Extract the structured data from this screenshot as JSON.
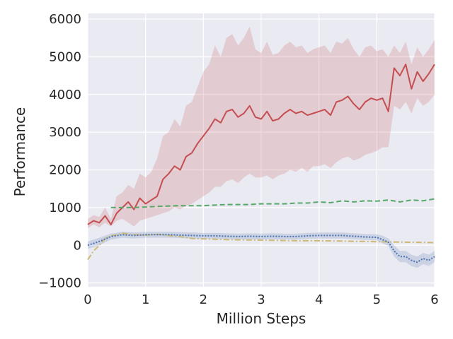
{
  "chart_data": {
    "type": "line",
    "title": "",
    "xlabel": "Million Steps",
    "ylabel": "Performance",
    "xlim": [
      0,
      6
    ],
    "ylim": [
      -1100,
      6150
    ],
    "xticks": [
      0,
      1,
      2,
      3,
      4,
      5,
      6
    ],
    "xtick_labels": [
      "0",
      "1",
      "2",
      "3",
      "4",
      "5",
      "6"
    ],
    "yticks": [
      -1000,
      0,
      1000,
      2000,
      3000,
      4000,
      5000,
      6000
    ],
    "ytick_labels": [
      "−1000",
      "0",
      "1000",
      "2000",
      "3000",
      "4000",
      "5000",
      "6000"
    ],
    "grid": true,
    "legend": "none",
    "colors": {
      "background": "#eaeaf2",
      "grid": "#ffffff"
    },
    "series": [
      {
        "color": "#c44e52",
        "linestyle": "solid",
        "x": [
          0,
          0.1,
          0.2,
          0.3,
          0.4,
          0.5,
          0.6,
          0.7,
          0.8,
          0.9,
          1.0,
          1.1,
          1.2,
          1.3,
          1.4,
          1.5,
          1.6,
          1.7,
          1.8,
          1.9,
          2.0,
          2.1,
          2.2,
          2.3,
          2.4,
          2.5,
          2.6,
          2.7,
          2.8,
          2.9,
          3.0,
          3.1,
          3.2,
          3.3,
          3.4,
          3.5,
          3.6,
          3.7,
          3.8,
          3.9,
          4.0,
          4.1,
          4.2,
          4.3,
          4.4,
          4.5,
          4.6,
          4.7,
          4.8,
          4.9,
          5.0,
          5.1,
          5.2,
          5.3,
          5.4,
          5.5,
          5.6,
          5.7,
          5.8,
          5.9,
          6.0
        ],
        "y": [
          550,
          650,
          600,
          780,
          550,
          850,
          1000,
          1150,
          950,
          1250,
          1100,
          1200,
          1300,
          1750,
          1900,
          2100,
          2000,
          2350,
          2450,
          2700,
          2900,
          3100,
          3350,
          3250,
          3550,
          3600,
          3400,
          3500,
          3700,
          3400,
          3350,
          3550,
          3300,
          3350,
          3500,
          3600,
          3500,
          3550,
          3450,
          3500,
          3550,
          3600,
          3450,
          3800,
          3850,
          3950,
          3750,
          3600,
          3800,
          3900,
          3850,
          3900,
          3550,
          4700,
          4500,
          4800,
          4150,
          4600,
          4350,
          4550,
          4800
        ],
        "lower": [
          450,
          550,
          480,
          600,
          500,
          650,
          700,
          600,
          500,
          650,
          700,
          750,
          800,
          850,
          900,
          1000,
          950,
          1050,
          1100,
          1200,
          1300,
          1400,
          1550,
          1550,
          1700,
          1750,
          1650,
          1800,
          1900,
          1800,
          1800,
          1850,
          1750,
          1850,
          1900,
          2000,
          1950,
          2050,
          1950,
          2100,
          2100,
          2150,
          2050,
          2200,
          2300,
          2350,
          2250,
          2300,
          2400,
          2450,
          2500,
          2600,
          2600,
          3700,
          3600,
          3800,
          3500,
          3900,
          3700,
          3800,
          4000
        ],
        "upper": [
          700,
          800,
          750,
          1000,
          700,
          1300,
          1400,
          1600,
          1500,
          1900,
          1800,
          1950,
          2300,
          2900,
          3000,
          3350,
          3150,
          3700,
          3800,
          4200,
          4600,
          4800,
          5300,
          5000,
          5500,
          5600,
          5300,
          5500,
          5800,
          5200,
          5100,
          5400,
          5050,
          5100,
          5300,
          5400,
          5250,
          5300,
          5100,
          5200,
          5250,
          5300,
          5100,
          5400,
          5350,
          5500,
          5200,
          5000,
          5250,
          5300,
          5150,
          5200,
          5000,
          5300,
          5100,
          5400,
          4800,
          5250,
          5000,
          5200,
          5450
        ]
      },
      {
        "color": "#55a868",
        "linestyle": "dashed",
        "x": [
          0.4,
          0.8,
          1.2,
          1.6,
          2.0,
          2.4,
          2.8,
          3.0,
          3.2,
          3.4,
          3.6,
          3.8,
          4.0,
          4.2,
          4.4,
          4.6,
          4.8,
          5.0,
          5.2,
          5.4,
          5.6,
          5.8,
          6.0
        ],
        "y": [
          1000,
          1000,
          1030,
          1050,
          1050,
          1080,
          1080,
          1100,
          1100,
          1100,
          1120,
          1120,
          1150,
          1130,
          1180,
          1150,
          1180,
          1170,
          1200,
          1150,
          1200,
          1180,
          1230
        ]
      },
      {
        "color": "#dd8452",
        "linestyle": "solid",
        "x": [
          0
        ],
        "y": [
          0
        ]
      },
      {
        "color": "#ccb974",
        "linestyle": "dashdot",
        "x": [
          0,
          0.1,
          0.2,
          0.3,
          0.4,
          0.5,
          0.6,
          0.8,
          1.0,
          1.2,
          1.4,
          1.6,
          1.8,
          2.0,
          2.4,
          2.8,
          3.2,
          3.6,
          4.0,
          4.4,
          4.8,
          5.2,
          5.6,
          6.0
        ],
        "y": [
          -380,
          -150,
          0,
          180,
          250,
          280,
          320,
          280,
          270,
          290,
          260,
          230,
          180,
          170,
          150,
          140,
          130,
          120,
          120,
          110,
          100,
          90,
          80,
          70
        ]
      },
      {
        "color": "#4c72b0",
        "linestyle": "dotted",
        "x": [
          0,
          0.2,
          0.4,
          0.6,
          0.8,
          1.0,
          1.2,
          1.4,
          1.6,
          1.8,
          2.0,
          2.2,
          2.4,
          2.6,
          2.8,
          3.0,
          3.2,
          3.4,
          3.6,
          3.8,
          4.0,
          4.2,
          4.4,
          4.6,
          4.8,
          5.0,
          5.1,
          5.2,
          5.3,
          5.4,
          5.5,
          5.6,
          5.7,
          5.8,
          5.9,
          6.0
        ],
        "y": [
          0,
          100,
          230,
          280,
          260,
          280,
          280,
          280,
          270,
          260,
          250,
          250,
          240,
          230,
          240,
          230,
          240,
          230,
          230,
          250,
          260,
          260,
          260,
          240,
          220,
          210,
          150,
          80,
          -150,
          -300,
          -300,
          -400,
          -450,
          -350,
          -400,
          -300
        ],
        "lower": [
          -100,
          0,
          150,
          200,
          180,
          200,
          200,
          200,
          190,
          180,
          170,
          170,
          160,
          150,
          160,
          150,
          160,
          150,
          150,
          170,
          180,
          180,
          180,
          160,
          140,
          130,
          50,
          -20,
          -300,
          -450,
          -450,
          -550,
          -600,
          -500,
          -550,
          -450
        ],
        "upper": [
          100,
          200,
          310,
          360,
          340,
          360,
          360,
          360,
          350,
          340,
          330,
          330,
          320,
          310,
          320,
          310,
          320,
          310,
          310,
          330,
          340,
          340,
          340,
          320,
          300,
          290,
          250,
          180,
          0,
          -150,
          -150,
          -250,
          -300,
          -200,
          -250,
          -150
        ]
      }
    ]
  }
}
